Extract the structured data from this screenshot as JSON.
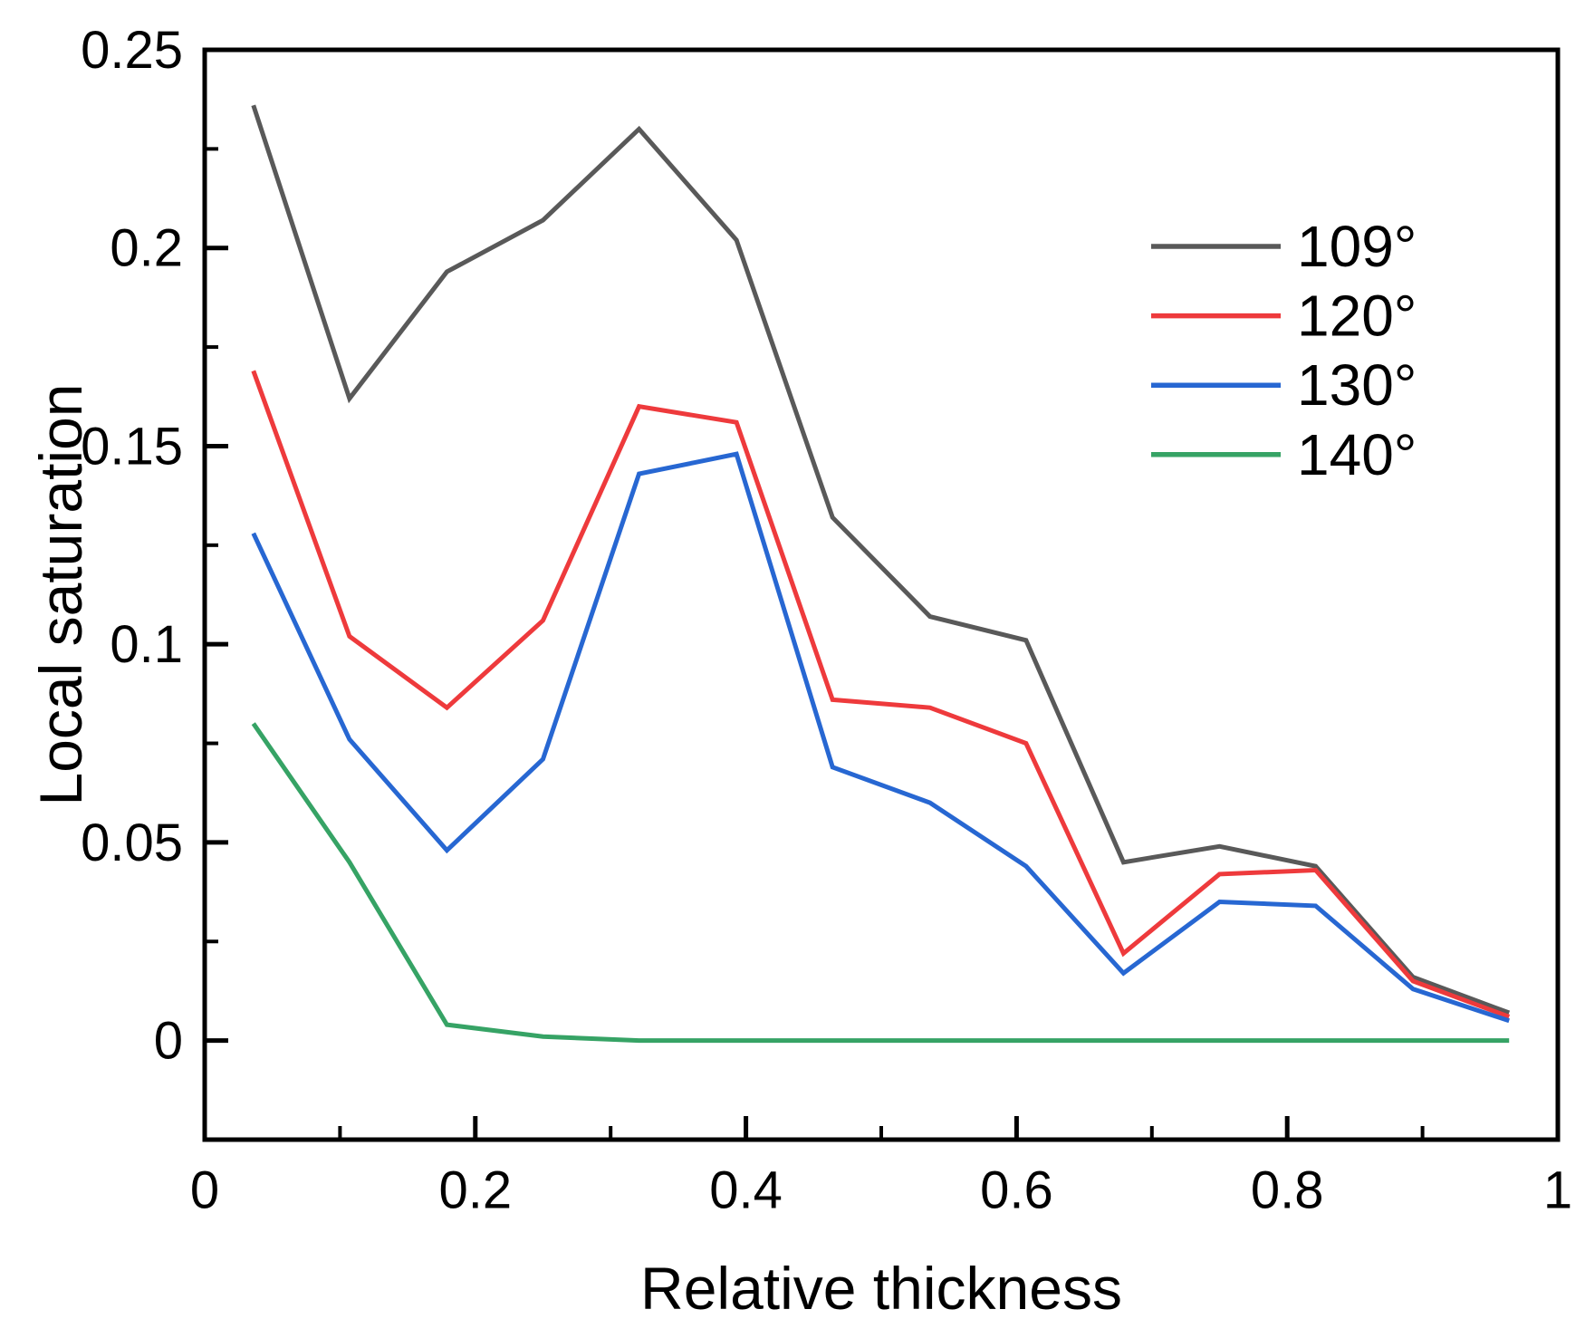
{
  "chart_data": {
    "type": "line",
    "title": "",
    "xlabel": "Relative thickness",
    "ylabel": "Local saturation",
    "xlim": [
      0,
      1
    ],
    "ylim": [
      -0.025,
      0.25
    ],
    "grid": false,
    "legend_position": "upper right",
    "x": [
      0.036,
      0.107,
      0.179,
      0.25,
      0.321,
      0.393,
      0.464,
      0.536,
      0.607,
      0.679,
      0.75,
      0.821,
      0.893,
      0.964
    ],
    "series": [
      {
        "name": "109°",
        "color": "#595959",
        "values": [
          0.236,
          0.162,
          0.194,
          0.207,
          0.23,
          0.202,
          0.132,
          0.107,
          0.101,
          0.045,
          0.049,
          0.044,
          0.016,
          0.007
        ]
      },
      {
        "name": "120°",
        "color": "#ee3a3c",
        "values": [
          0.169,
          0.102,
          0.084,
          0.106,
          0.16,
          0.156,
          0.086,
          0.084,
          0.075,
          0.022,
          0.042,
          0.043,
          0.015,
          0.006
        ]
      },
      {
        "name": "130°",
        "color": "#2767d2",
        "values": [
          0.128,
          0.076,
          0.048,
          0.071,
          0.143,
          0.148,
          0.069,
          0.06,
          0.044,
          0.017,
          0.035,
          0.034,
          0.013,
          0.005
        ]
      },
      {
        "name": "140°",
        "color": "#36a365",
        "values": [
          0.08,
          0.045,
          0.004,
          0.001,
          0.0,
          0.0,
          0.0,
          0.0,
          0.0,
          0.0,
          0.0,
          0.0,
          0.0,
          0.0
        ]
      }
    ],
    "xticks": {
      "major": [
        0,
        0.2,
        0.4,
        0.6,
        0.8,
        1
      ],
      "labels": [
        "0",
        "0.2",
        "0.4",
        "0.6",
        "0.8",
        "1"
      ],
      "minor": [
        0.1,
        0.3,
        0.5,
        0.7,
        0.9
      ]
    },
    "yticks": {
      "major": [
        0,
        0.05,
        0.1,
        0.15,
        0.2,
        0.25
      ],
      "labels": [
        "0",
        "0.05",
        "0.1",
        "0.15",
        "0.2",
        "0.25"
      ],
      "minor": [
        0.025,
        0.075,
        0.125,
        0.175,
        0.225
      ]
    },
    "axis_color": "#000000"
  }
}
